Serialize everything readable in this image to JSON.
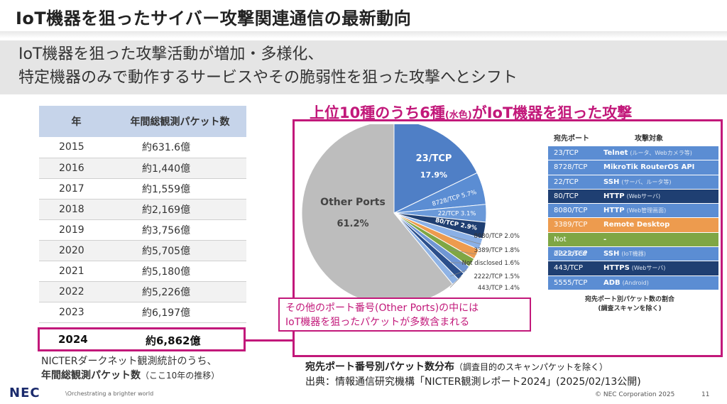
{
  "header": {
    "title": "IoT機器を狙ったサイバー攻撃関連通信の最新動向",
    "subtitle": "IoT機器を狙った攻撃活動が増加・多様化、\n特定機器のみで動作するサービスやその脆弱性を狙った攻撃へとシフト"
  },
  "year_table": {
    "col_year": "年",
    "col_packets": "年間総観測パケット数",
    "rows": [
      {
        "year": "2015",
        "value": "約631.6億"
      },
      {
        "year": "2016",
        "value": "約1,440億"
      },
      {
        "year": "2017",
        "value": "約1,559億"
      },
      {
        "year": "2018",
        "value": "約2,169億"
      },
      {
        "year": "2019",
        "value": "約3,756億"
      },
      {
        "year": "2020",
        "value": "約5,705億"
      },
      {
        "year": "2021",
        "value": "約5,180億"
      },
      {
        "year": "2022",
        "value": "約5,226億"
      },
      {
        "year": "2023",
        "value": "約6,197億"
      }
    ],
    "highlight": {
      "year": "2024",
      "value": "約6,862億"
    },
    "caption_line1": "NICTERダークネット観測統計のうち、",
    "caption_bold": "年間総観測パケット数",
    "caption_tail": "（ここ10年の推移）"
  },
  "headline": {
    "part1": "上位10種のうち6種",
    "part2": "(水色)",
    "part3": "がIoT機器を狙った攻撃"
  },
  "callout": {
    "line1": "その他のポート番号(Other Ports)の中には",
    "line2": "IoT機器を狙ったパケットが多数含まれる"
  },
  "caption_right": {
    "line1_bold": "宛先ポート番号別パケット数分布",
    "line1_small": "（調査目的のスキャンパケットを除く）",
    "line2": "出典：情報通信研究機構「NICTER観測レポート2024」(2025/02/13公開)"
  },
  "chart_data": {
    "type": "pie",
    "slices": [
      {
        "label": "23/TCP",
        "value": 17.9,
        "color": "#4f7fc6"
      },
      {
        "label": "8728/TCP",
        "value": 5.7,
        "color": "#5b8dd3"
      },
      {
        "label": "22/TCP",
        "value": 3.1,
        "color": "#6a99d9"
      },
      {
        "label": "80/TCP",
        "value": 2.9,
        "color": "#1f3f72"
      },
      {
        "label": "8080/TCP",
        "value": 2.0,
        "color": "#8ab0e6"
      },
      {
        "label": "3389/TCP",
        "value": 1.8,
        "color": "#ed9b4e"
      },
      {
        "label": "Not disclosed",
        "value": 1.6,
        "color": "#7fa644"
      },
      {
        "label": "2222/TCP",
        "value": 1.5,
        "color": "#6f96d4"
      },
      {
        "label": "443/TCP",
        "value": 1.4,
        "color": "#2b4f8c"
      },
      {
        "label": "5555/TCP",
        "value": 1.3,
        "color": "#8fb3e5"
      },
      {
        "label": "Other Ports",
        "value": 61.2,
        "color": "#bdbdbd"
      }
    ],
    "display_labels": [
      {
        "name": "23/TCP",
        "pct": "17.9%"
      },
      {
        "name": "8728/TCP",
        "pct": "5.7%"
      },
      {
        "name": "22/TCP",
        "pct": "3.1%"
      },
      {
        "name": "80/TCP",
        "pct": "2.9%"
      },
      {
        "name": "8080/TCP",
        "pct": "2.0%"
      },
      {
        "name": "3389/TCP",
        "pct": "1.8%"
      },
      {
        "name": "Not disclosed",
        "pct": "1.6%"
      },
      {
        "name": "2222/TCP",
        "pct": "1.5%"
      },
      {
        "name": "443/TCP",
        "pct": "1.4%"
      },
      {
        "name": "Other Ports",
        "pct": "61.2%"
      }
    ]
  },
  "port_table": {
    "col_port": "宛先ポート",
    "col_target": "攻撃対象",
    "rows": [
      {
        "port": "23/TCP",
        "target": "Telnet",
        "note": "(ルータ、Webカメラ等)",
        "color": "#5b8dd3"
      },
      {
        "port": "8728/TCP",
        "target": "MikroTik RouterOS API",
        "note": "",
        "color": "#5b8dd3"
      },
      {
        "port": "22/TCP",
        "target": "SSH",
        "note": "(サーバ、ルータ等)",
        "color": "#5b8dd3"
      },
      {
        "port": "80/TCP",
        "target": "HTTP",
        "note": "(Webサーバ)",
        "color": "#1f3f72"
      },
      {
        "port": "8080/TCP",
        "target": "HTTP",
        "note": "(Web管理画面)",
        "color": "#5b8dd3"
      },
      {
        "port": "3389/TCP",
        "target": "Remote Desktop",
        "note": "",
        "color": "#ed9b4e"
      },
      {
        "port": "Not disclosed",
        "target": "-",
        "note": "",
        "color": "#7fa644"
      },
      {
        "port": "2222/TCP",
        "target": "SSH",
        "note": "(IoT機器)",
        "color": "#5b8dd3"
      },
      {
        "port": "443/TCP",
        "target": "HTTPS",
        "note": "(Webサーバ)",
        "color": "#1f3f72"
      },
      {
        "port": "5555/TCP",
        "target": "ADB",
        "note": "(Android)",
        "color": "#5b8dd3"
      }
    ],
    "caption_line1": "宛先ポート別パケット数の割合",
    "caption_line2": "(調査スキャンを除く)"
  },
  "footer": {
    "logo": "NEC",
    "slogan": "\\Orchestrating a brighter world",
    "copyright": "© NEC Corporation 2025",
    "page": "11"
  }
}
